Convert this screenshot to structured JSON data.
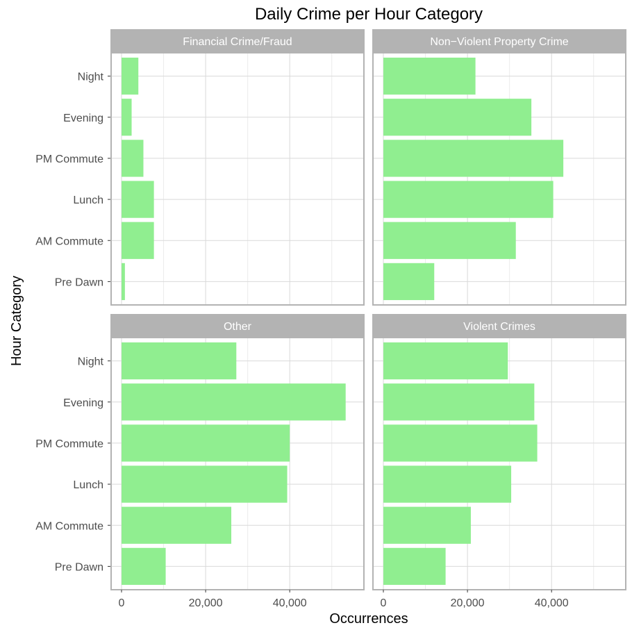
{
  "chart_data": {
    "type": "bar",
    "orientation": "horizontal",
    "title": "Daily Crime per Hour Category",
    "xlabel": "Occurrences",
    "ylabel": "Hour Category",
    "xlim": [
      0,
      55000
    ],
    "x_ticks": [
      {
        "value": 0,
        "label": "0"
      },
      {
        "value": 20000,
        "label": "20,000"
      },
      {
        "value": 40000,
        "label": "40,000"
      }
    ],
    "categories": [
      "Pre Dawn",
      "AM Commute",
      "Lunch",
      "PM Commute",
      "Evening",
      "Night"
    ],
    "grid": true,
    "legend": "none",
    "colors": {
      "bar": "#90ee90",
      "strip_bg": "#b3b3b3",
      "strip_text": "#ffffff",
      "grid": "#d9d9d9",
      "panel_border": "#b3b3b3",
      "tick_text": "#4d4d4d",
      "title_text": "#000000"
    },
    "panels": [
      {
        "name": "Financial Crime/Fraud",
        "values": [
          800,
          7700,
          7700,
          5200,
          2400,
          4000
        ]
      },
      {
        "name": "Non−Violent Property Crime",
        "values": [
          12100,
          31500,
          40400,
          42800,
          35200,
          21900
        ]
      },
      {
        "name": "Other",
        "values": [
          10500,
          26100,
          39400,
          40000,
          53300,
          27300
        ]
      },
      {
        "name": "Violent Crimes",
        "values": [
          14800,
          20800,
          30400,
          36600,
          35900,
          29600
        ]
      }
    ]
  }
}
